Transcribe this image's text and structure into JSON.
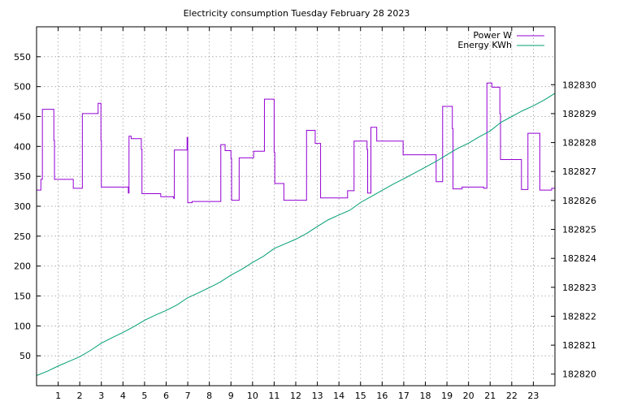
{
  "chart_data": {
    "type": "line",
    "title": "Electricity consumption Tuesday February 28 2023",
    "xlabel": "",
    "ylabel": "",
    "y2label": "",
    "xlim": [
      0,
      24
    ],
    "ylim": [
      0,
      600
    ],
    "y2lim": [
      182819.6,
      182832.0
    ],
    "x_ticks": [
      1,
      2,
      3,
      4,
      5,
      6,
      7,
      8,
      9,
      10,
      11,
      12,
      13,
      14,
      15,
      16,
      17,
      18,
      19,
      20,
      21,
      22,
      23
    ],
    "y_ticks": [
      50,
      100,
      150,
      200,
      250,
      300,
      350,
      400,
      450,
      500,
      550
    ],
    "y2_ticks": [
      182820,
      182821,
      182822,
      182823,
      182824,
      182825,
      182826,
      182827,
      182828,
      182829,
      182830
    ],
    "grid": true,
    "legend_position": "top-right",
    "series": [
      {
        "name": "Power W",
        "axis": "left",
        "color": "#9400d3",
        "points": [
          [
            0.0,
            327
          ],
          [
            0.2,
            327
          ],
          [
            0.2,
            345
          ],
          [
            0.27,
            345
          ],
          [
            0.27,
            462
          ],
          [
            0.8,
            462
          ],
          [
            0.8,
            410
          ],
          [
            0.83,
            410
          ],
          [
            0.83,
            345
          ],
          [
            1.7,
            345
          ],
          [
            1.7,
            330
          ],
          [
            2.12,
            330
          ],
          [
            2.12,
            455
          ],
          [
            2.85,
            455
          ],
          [
            2.85,
            472
          ],
          [
            2.98,
            472
          ],
          [
            2.98,
            410
          ],
          [
            3.0,
            410
          ],
          [
            3.0,
            332
          ],
          [
            4.25,
            332
          ],
          [
            4.25,
            322
          ],
          [
            4.28,
            322
          ],
          [
            4.28,
            417
          ],
          [
            4.38,
            417
          ],
          [
            4.38,
            413
          ],
          [
            4.85,
            413
          ],
          [
            4.85,
            395
          ],
          [
            4.88,
            395
          ],
          [
            4.88,
            321
          ],
          [
            5.75,
            321
          ],
          [
            5.75,
            316
          ],
          [
            6.35,
            316
          ],
          [
            6.35,
            313
          ],
          [
            6.38,
            313
          ],
          [
            6.38,
            394
          ],
          [
            6.97,
            394
          ],
          [
            6.97,
            415
          ],
          [
            7.0,
            415
          ],
          [
            7.0,
            306
          ],
          [
            7.2,
            306
          ],
          [
            7.2,
            308
          ],
          [
            8.53,
            308
          ],
          [
            8.53,
            403
          ],
          [
            8.73,
            403
          ],
          [
            8.73,
            393
          ],
          [
            9.0,
            393
          ],
          [
            9.0,
            380
          ],
          [
            9.03,
            380
          ],
          [
            9.03,
            310
          ],
          [
            9.38,
            310
          ],
          [
            9.38,
            381
          ],
          [
            10.05,
            381
          ],
          [
            10.05,
            392
          ],
          [
            10.55,
            392
          ],
          [
            10.55,
            479
          ],
          [
            11.0,
            479
          ],
          [
            11.0,
            390
          ],
          [
            11.03,
            390
          ],
          [
            11.03,
            338
          ],
          [
            11.45,
            338
          ],
          [
            11.45,
            310
          ],
          [
            12.5,
            310
          ],
          [
            12.5,
            427
          ],
          [
            12.9,
            427
          ],
          [
            12.9,
            405
          ],
          [
            13.15,
            405
          ],
          [
            13.15,
            314
          ],
          [
            14.4,
            314
          ],
          [
            14.4,
            326
          ],
          [
            14.7,
            326
          ],
          [
            14.7,
            409
          ],
          [
            15.3,
            409
          ],
          [
            15.3,
            395
          ],
          [
            15.33,
            395
          ],
          [
            15.33,
            322
          ],
          [
            15.48,
            322
          ],
          [
            15.48,
            432
          ],
          [
            15.75,
            432
          ],
          [
            15.75,
            409
          ],
          [
            16.97,
            409
          ],
          [
            16.97,
            386
          ],
          [
            18.5,
            386
          ],
          [
            18.5,
            341
          ],
          [
            18.8,
            341
          ],
          [
            18.8,
            467
          ],
          [
            19.25,
            467
          ],
          [
            19.25,
            430
          ],
          [
            19.28,
            430
          ],
          [
            19.28,
            329
          ],
          [
            19.7,
            329
          ],
          [
            19.7,
            332
          ],
          [
            20.7,
            332
          ],
          [
            20.7,
            330
          ],
          [
            20.85,
            330
          ],
          [
            20.85,
            506
          ],
          [
            21.08,
            506
          ],
          [
            21.08,
            499
          ],
          [
            21.45,
            499
          ],
          [
            21.45,
            455
          ],
          [
            21.48,
            455
          ],
          [
            21.48,
            378
          ],
          [
            22.45,
            378
          ],
          [
            22.45,
            328
          ],
          [
            22.75,
            328
          ],
          [
            22.75,
            422
          ],
          [
            23.3,
            422
          ],
          [
            23.3,
            327
          ],
          [
            23.85,
            327
          ],
          [
            23.85,
            330
          ],
          [
            24.0,
            330
          ]
        ]
      },
      {
        "name": "Energy KWh",
        "axis": "right",
        "color": "#009e73",
        "points": [
          [
            0.0,
            182819.95
          ],
          [
            0.5,
            182820.1
          ],
          [
            1.0,
            182820.28
          ],
          [
            1.5,
            182820.44
          ],
          [
            2.0,
            182820.6
          ],
          [
            2.5,
            182820.82
          ],
          [
            3.0,
            182821.07
          ],
          [
            3.5,
            182821.26
          ],
          [
            4.0,
            182821.44
          ],
          [
            4.5,
            182821.64
          ],
          [
            5.0,
            182821.86
          ],
          [
            5.5,
            182822.04
          ],
          [
            6.0,
            182822.2
          ],
          [
            6.5,
            182822.39
          ],
          [
            7.0,
            182822.64
          ],
          [
            7.5,
            182822.81
          ],
          [
            8.0,
            182822.99
          ],
          [
            8.5,
            182823.18
          ],
          [
            9.0,
            182823.42
          ],
          [
            9.5,
            182823.62
          ],
          [
            10.0,
            182823.86
          ],
          [
            10.5,
            182824.07
          ],
          [
            11.0,
            182824.34
          ],
          [
            11.5,
            182824.5
          ],
          [
            12.0,
            182824.66
          ],
          [
            12.5,
            182824.86
          ],
          [
            13.0,
            182825.1
          ],
          [
            13.5,
            182825.33
          ],
          [
            14.0,
            182825.5
          ],
          [
            14.5,
            182825.66
          ],
          [
            15.0,
            182825.93
          ],
          [
            15.5,
            182826.14
          ],
          [
            16.0,
            182826.35
          ],
          [
            16.5,
            182826.56
          ],
          [
            17.0,
            182826.75
          ],
          [
            17.5,
            182826.95
          ],
          [
            18.0,
            182827.15
          ],
          [
            18.5,
            182827.35
          ],
          [
            19.0,
            182827.58
          ],
          [
            19.5,
            182827.8
          ],
          [
            20.0,
            182827.98
          ],
          [
            20.5,
            182828.2
          ],
          [
            21.0,
            182828.4
          ],
          [
            21.5,
            182828.7
          ],
          [
            22.0,
            182828.9
          ],
          [
            22.5,
            182829.1
          ],
          [
            23.0,
            182829.27
          ],
          [
            23.5,
            182829.47
          ],
          [
            24.0,
            182829.7
          ]
        ]
      }
    ]
  }
}
